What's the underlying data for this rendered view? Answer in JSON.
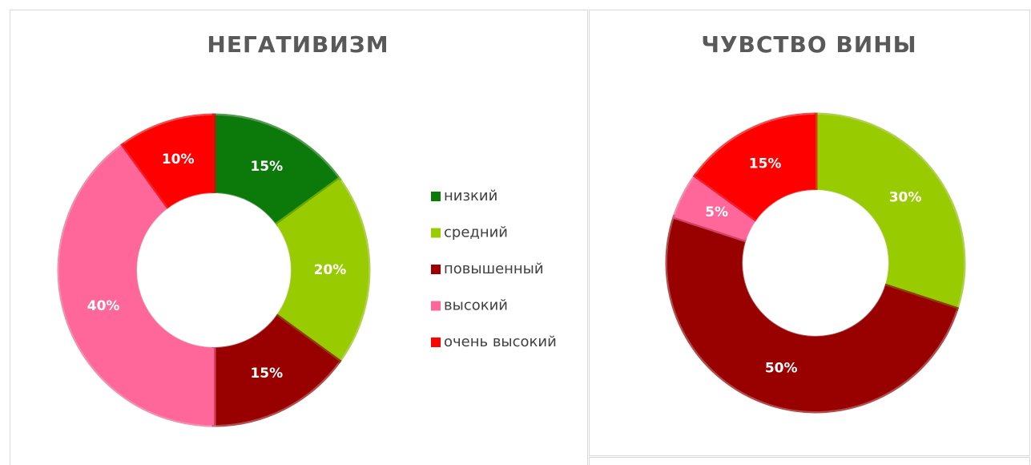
{
  "chart_data": [
    {
      "type": "donut",
      "title": "НЕГАТИВИЗМ",
      "categories": [
        "низкий",
        "средний",
        "повышенный",
        "высокий",
        "очень высокий"
      ],
      "values": [
        15,
        20,
        15,
        40,
        10
      ],
      "value_labels": [
        "15%",
        "20%",
        "15%",
        "40%",
        "10%"
      ],
      "colors": [
        "#0b7a0b",
        "#99cc00",
        "#990000",
        "#ff6699",
        "#ff0000"
      ],
      "legend": "right"
    },
    {
      "type": "donut",
      "title": "ЧУВСТВО ВИНЫ",
      "values": [
        0,
        30,
        50,
        5,
        15
      ],
      "value_labels": [
        "0%",
        "30%",
        "50%",
        "5%",
        "15%"
      ],
      "colors": [
        "#0b7a0b",
        "#99cc00",
        "#990000",
        "#ff6699",
        "#ff0000"
      ]
    }
  ]
}
